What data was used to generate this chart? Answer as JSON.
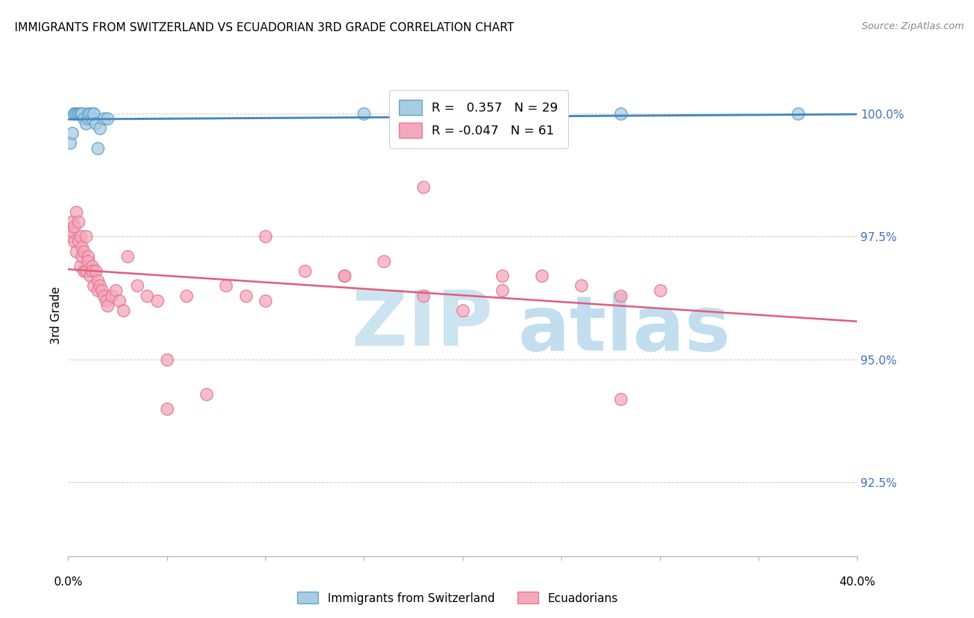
{
  "title": "IMMIGRANTS FROM SWITZERLAND VS ECUADORIAN 3RD GRADE CORRELATION CHART",
  "source": "Source: ZipAtlas.com",
  "ylabel": "3rd Grade",
  "ytick_labels": [
    "100.0%",
    "97.5%",
    "95.0%",
    "92.5%"
  ],
  "ytick_values": [
    1.0,
    0.975,
    0.95,
    0.925
  ],
  "legend_blue_R": "0.357",
  "legend_blue_N": "29",
  "legend_pink_R": "-0.047",
  "legend_pink_N": "61",
  "blue_color": "#a8cce4",
  "pink_color": "#f4a8bc",
  "blue_edge_color": "#5b9dc9",
  "pink_edge_color": "#e87090",
  "blue_line_color": "#4488bb",
  "pink_line_color": "#e06080",
  "blue_scatter": {
    "x": [
      0.001,
      0.002,
      0.003,
      0.003,
      0.004,
      0.004,
      0.005,
      0.005,
      0.006,
      0.006,
      0.007,
      0.007,
      0.008,
      0.009,
      0.01,
      0.01,
      0.011,
      0.012,
      0.013,
      0.013,
      0.014,
      0.015,
      0.016,
      0.018,
      0.02,
      0.15,
      0.22,
      0.28,
      0.37
    ],
    "y": [
      0.994,
      0.996,
      1.0,
      1.0,
      1.0,
      1.0,
      1.0,
      1.0,
      1.0,
      1.0,
      1.0,
      1.0,
      0.999,
      0.998,
      0.999,
      1.0,
      1.0,
      0.999,
      1.0,
      1.0,
      0.998,
      0.993,
      0.997,
      0.999,
      0.999,
      1.0,
      0.998,
      1.0,
      1.0
    ]
  },
  "pink_scatter": {
    "x": [
      0.001,
      0.002,
      0.002,
      0.003,
      0.003,
      0.004,
      0.004,
      0.005,
      0.005,
      0.006,
      0.006,
      0.007,
      0.007,
      0.008,
      0.008,
      0.009,
      0.009,
      0.01,
      0.01,
      0.011,
      0.012,
      0.012,
      0.013,
      0.014,
      0.015,
      0.015,
      0.016,
      0.017,
      0.018,
      0.019,
      0.02,
      0.022,
      0.024,
      0.026,
      0.028,
      0.03,
      0.035,
      0.04,
      0.045,
      0.05,
      0.06,
      0.07,
      0.08,
      0.09,
      0.1,
      0.12,
      0.14,
      0.16,
      0.18,
      0.2,
      0.22,
      0.24,
      0.26,
      0.28,
      0.3,
      0.18,
      0.1,
      0.14,
      0.28,
      0.05,
      0.22
    ],
    "y": [
      0.975,
      0.976,
      0.978,
      0.974,
      0.977,
      0.98,
      0.972,
      0.978,
      0.974,
      0.975,
      0.969,
      0.973,
      0.971,
      0.968,
      0.972,
      0.975,
      0.968,
      0.971,
      0.97,
      0.967,
      0.969,
      0.968,
      0.965,
      0.968,
      0.966,
      0.964,
      0.965,
      0.964,
      0.963,
      0.962,
      0.961,
      0.963,
      0.964,
      0.962,
      0.96,
      0.971,
      0.965,
      0.963,
      0.962,
      0.94,
      0.963,
      0.943,
      0.965,
      0.963,
      0.962,
      0.968,
      0.967,
      0.97,
      0.963,
      0.96,
      0.964,
      0.967,
      0.965,
      0.963,
      0.964,
      0.985,
      0.975,
      0.967,
      0.942,
      0.95,
      0.967
    ]
  },
  "xmin": 0.0,
  "xmax": 0.4,
  "ymin": 0.91,
  "ymax": 1.008,
  "background_color": "#ffffff",
  "grid_color": "#cccccc",
  "right_label_color": "#4472c4"
}
